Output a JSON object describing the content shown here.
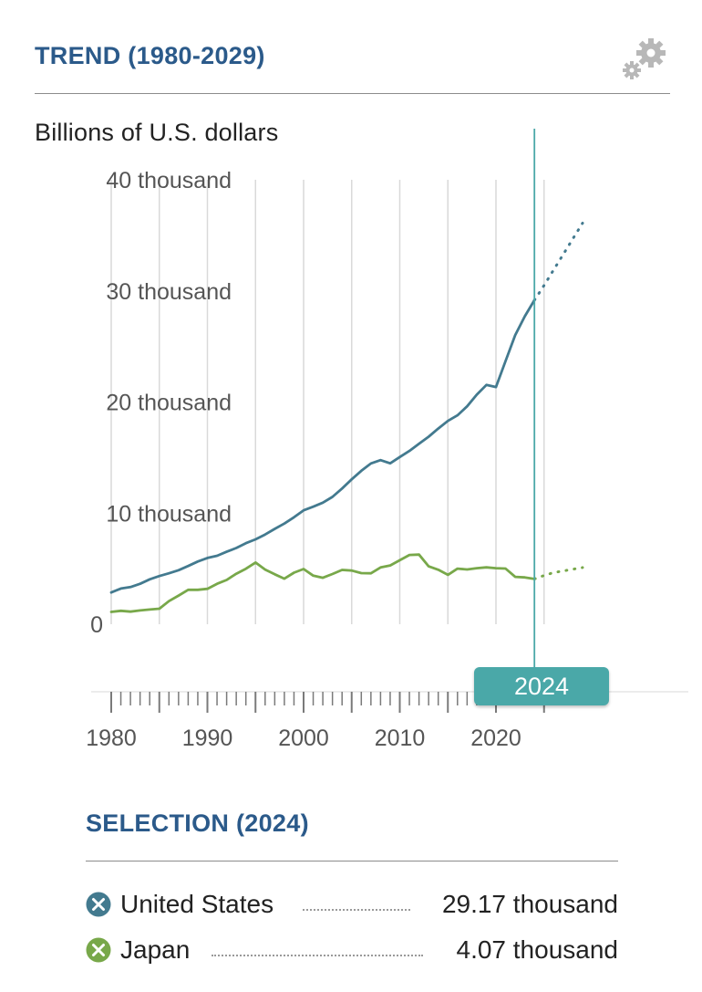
{
  "header": {
    "title": "TREND (1980-2029)"
  },
  "chart_data": {
    "type": "line",
    "ylabel": "Billions of U.S. dollars",
    "ylim": [
      0,
      40000
    ],
    "yticks": [
      0,
      10000,
      20000,
      30000,
      40000
    ],
    "ytick_labels": [
      "0",
      "10 thousand",
      "20 thousand",
      "30 thousand",
      "40 thousand"
    ],
    "xlim": [
      1980,
      2029
    ],
    "xticks": [
      1980,
      1990,
      2000,
      2010,
      2020
    ],
    "xtick_labels": [
      "1980",
      "1990",
      "2000",
      "2010",
      "2020"
    ],
    "selected_year": 2024,
    "selected_year_label": "2024",
    "grid": "vertical",
    "projection_start": 2024,
    "series": [
      {
        "name": "United States",
        "color": "#437a8f",
        "x": [
          1980,
          1981,
          1982,
          1983,
          1984,
          1985,
          1986,
          1987,
          1988,
          1989,
          1990,
          1991,
          1992,
          1993,
          1994,
          1995,
          1996,
          1997,
          1998,
          1999,
          2000,
          2001,
          2002,
          2003,
          2004,
          2005,
          2006,
          2007,
          2008,
          2009,
          2010,
          2011,
          2012,
          2013,
          2014,
          2015,
          2016,
          2017,
          2018,
          2019,
          2020,
          2021,
          2022,
          2023,
          2024,
          2025,
          2026,
          2027,
          2028,
          2029
        ],
        "values": [
          2860,
          3210,
          3340,
          3640,
          4040,
          4340,
          4580,
          4860,
          5240,
          5640,
          5960,
          6160,
          6520,
          6860,
          7290,
          7640,
          8070,
          8580,
          9060,
          9630,
          10250,
          10580,
          10940,
          11460,
          12210,
          13040,
          13810,
          14470,
          14770,
          14480,
          15050,
          15600,
          16250,
          16880,
          17610,
          18300,
          18800,
          19610,
          20660,
          21540,
          21350,
          23680,
          26010,
          27720,
          29170,
          30500,
          31900,
          33300,
          34700,
          36100
        ]
      },
      {
        "name": "Japan",
        "color": "#78a84a",
        "x": [
          1980,
          1981,
          1982,
          1983,
          1984,
          1985,
          1986,
          1987,
          1988,
          1989,
          1990,
          1991,
          1992,
          1993,
          1994,
          1995,
          1996,
          1997,
          1998,
          1999,
          2000,
          2001,
          2002,
          2003,
          2004,
          2005,
          2006,
          2007,
          2008,
          2009,
          2010,
          2011,
          2012,
          2013,
          2014,
          2015,
          2016,
          2017,
          2018,
          2019,
          2020,
          2021,
          2022,
          2023,
          2024,
          2025,
          2026,
          2027,
          2028,
          2029
        ],
        "values": [
          1110,
          1210,
          1130,
          1240,
          1320,
          1400,
          2080,
          2580,
          3100,
          3100,
          3190,
          3640,
          3980,
          4540,
          4990,
          5550,
          4920,
          4490,
          4100,
          4640,
          4970,
          4370,
          4180,
          4520,
          4890,
          4830,
          4600,
          4580,
          5110,
          5290,
          5760,
          6230,
          6270,
          5210,
          4900,
          4440,
          5000,
          4930,
          5040,
          5120,
          5040,
          5010,
          4260,
          4210,
          4070,
          4390,
          4650,
          4800,
          4950,
          5100
        ]
      }
    ]
  },
  "selection": {
    "title": "SELECTION (2024)",
    "items": [
      {
        "name": "United States",
        "value": "29.17 thousand",
        "color": "#437a8f",
        "icon": "x-circle-icon"
      },
      {
        "name": "Japan",
        "value": "4.07 thousand",
        "color": "#78a84a",
        "icon": "x-circle-icon"
      }
    ]
  },
  "icons": {
    "settings": "gears-icon"
  }
}
